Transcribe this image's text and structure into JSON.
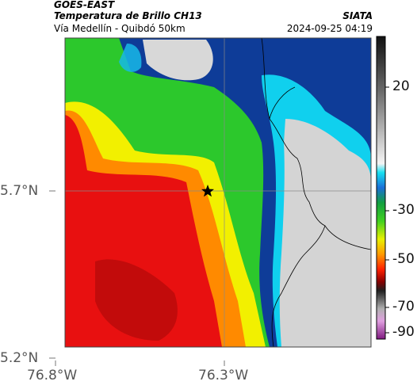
{
  "header": {
    "satellite": "GOES-EAST",
    "product": "Temperatura de Brillo CH13",
    "region": "Vía Medellín - Quibdó 50km",
    "org": "SIATA",
    "timestamp": "2024-09-25 04:19"
  },
  "axes": {
    "y_ticks": [
      {
        "label": "5.7°N",
        "value": 5.7
      },
      {
        "label": "5.2°N",
        "value": 5.2
      }
    ],
    "x_ticks": [
      {
        "label": "76.8°W",
        "value": -76.8
      },
      {
        "label": "76.3°W",
        "value": -76.3
      }
    ]
  },
  "colorbar": {
    "ticks": [
      {
        "label": "20",
        "value": 20
      },
      {
        "label": "-30",
        "value": -30
      },
      {
        "label": "-50",
        "value": -50
      },
      {
        "label": "-70",
        "value": -70
      },
      {
        "label": "-90",
        "value": -90
      }
    ]
  },
  "marker": {
    "symbol": "star",
    "color": "#000000"
  },
  "colors": {
    "cold_high": "#a01aa0",
    "red": "#e01010",
    "orange": "#ff7a00",
    "yellow": "#fff000",
    "green": "#20c020",
    "blue": "#1040a0",
    "cyan": "#10d8f0",
    "gray": "#cfcfcf"
  }
}
